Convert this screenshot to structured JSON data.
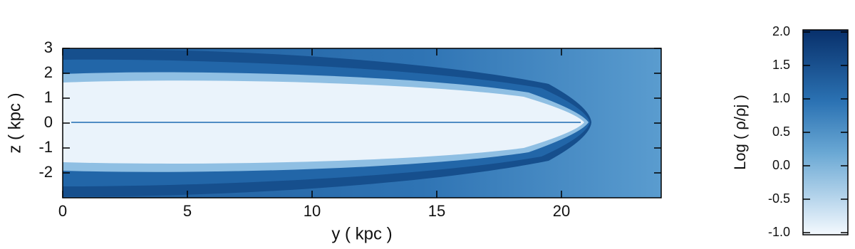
{
  "chart_data": {
    "type": "heatmap",
    "xlabel": "y ( kpc )",
    "ylabel": "z ( kpc )",
    "xlim": [
      0,
      24
    ],
    "xticks": [
      0,
      5,
      10,
      15,
      20
    ],
    "ylim": [
      -3,
      3
    ],
    "yticks": [
      -2,
      -1,
      0,
      1,
      2,
      3
    ],
    "colorbar_label": "Log ( ρ/ρj )",
    "clim": [
      -1,
      2
    ],
    "cticks": [
      {
        "value": -1,
        "label": "-1.0"
      },
      -0.5,
      {
        "value": 0,
        "label": "0.0"
      },
      0.5,
      {
        "value": 1,
        "label": "1.0"
      },
      1.5,
      {
        "value": 2,
        "label": "2.0"
      }
    ]
  }
}
